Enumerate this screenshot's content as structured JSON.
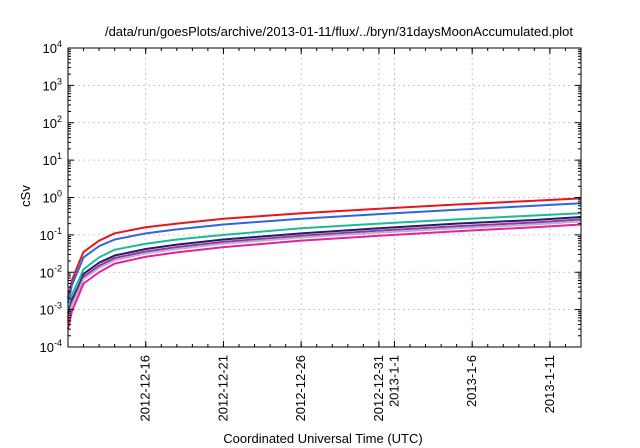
{
  "chart_data": {
    "type": "line",
    "title": "/data/run/goesPlots/archive/2013-01-11/flux/../bryn/31daysMoonAccumulated.plot",
    "xlabel": "Coordinated Universal Time (UTC)",
    "ylabel": "cSv",
    "y_scale": "log",
    "ylim": [
      0.0001,
      10000
    ],
    "xlim": [
      "2012-12-11",
      "2013-01-13"
    ],
    "grid": true,
    "y_ticks": [
      {
        "value": 0.0001,
        "base": "10",
        "exp": "-4"
      },
      {
        "value": 0.001,
        "base": "10",
        "exp": "-3"
      },
      {
        "value": 0.01,
        "base": "10",
        "exp": "-2"
      },
      {
        "value": 0.1,
        "base": "10",
        "exp": "-1"
      },
      {
        "value": 1,
        "base": "10",
        "exp": "0"
      },
      {
        "value": 10,
        "base": "10",
        "exp": "1"
      },
      {
        "value": 100,
        "base": "10",
        "exp": "2"
      },
      {
        "value": 1000,
        "base": "10",
        "exp": "3"
      },
      {
        "value": 10000,
        "base": "10",
        "exp": "4"
      }
    ],
    "x_ticks": [
      {
        "date": "2012-12-16",
        "label": "2012-12-16"
      },
      {
        "date": "2012-12-21",
        "label": "2012-12-21"
      },
      {
        "date": "2012-12-26",
        "label": "2012-12-26"
      },
      {
        "date": "2012-12-31",
        "label": "2012-12-31"
      },
      {
        "date": "2013-01-01",
        "label": "2013-1-1"
      },
      {
        "date": "2013-01-06",
        "label": "2013-1-6"
      },
      {
        "date": "2013-01-11",
        "label": "2013-1-11"
      }
    ],
    "x": [
      "2012-12-11",
      "2012-12-11T06:00",
      "2012-12-11T18:00",
      "2012-12-12",
      "2012-12-13",
      "2012-12-14",
      "2012-12-16",
      "2012-12-18",
      "2012-12-21",
      "2012-12-26",
      "2012-12-31",
      "2013-01-05",
      "2013-01-10",
      "2013-01-13"
    ],
    "series": [
      {
        "color": "#e8141e",
        "values": [
          0.002,
          0.006,
          0.02,
          0.035,
          0.07,
          0.11,
          0.16,
          0.2,
          0.27,
          0.38,
          0.5,
          0.65,
          0.82,
          0.95
        ]
      },
      {
        "color": "#2f66e0",
        "values": [
          0.0015,
          0.0045,
          0.014,
          0.025,
          0.05,
          0.075,
          0.11,
          0.14,
          0.19,
          0.27,
          0.36,
          0.47,
          0.6,
          0.7
        ]
      },
      {
        "color": "#1fb89c",
        "values": [
          0.0008,
          0.0025,
          0.007,
          0.012,
          0.025,
          0.04,
          0.058,
          0.075,
          0.1,
          0.15,
          0.2,
          0.26,
          0.33,
          0.38
        ]
      },
      {
        "color": "#221c63",
        "values": [
          0.0006,
          0.0018,
          0.005,
          0.009,
          0.018,
          0.028,
          0.042,
          0.055,
          0.075,
          0.11,
          0.15,
          0.2,
          0.25,
          0.3
        ]
      },
      {
        "color": "#9a2fb5",
        "values": [
          0.0005,
          0.0015,
          0.0042,
          0.0075,
          0.015,
          0.024,
          0.036,
          0.047,
          0.065,
          0.095,
          0.13,
          0.17,
          0.215,
          0.26
        ]
      },
      {
        "color": "#b6b6b6",
        "values": [
          0.00045,
          0.0013,
          0.0037,
          0.0066,
          0.013,
          0.021,
          0.032,
          0.042,
          0.058,
          0.085,
          0.115,
          0.15,
          0.19,
          0.23
        ]
      },
      {
        "color": "#e81ea5",
        "values": [
          0.0003,
          0.0009,
          0.0028,
          0.005,
          0.01,
          0.017,
          0.026,
          0.034,
          0.047,
          0.07,
          0.095,
          0.125,
          0.16,
          0.19
        ]
      }
    ]
  }
}
